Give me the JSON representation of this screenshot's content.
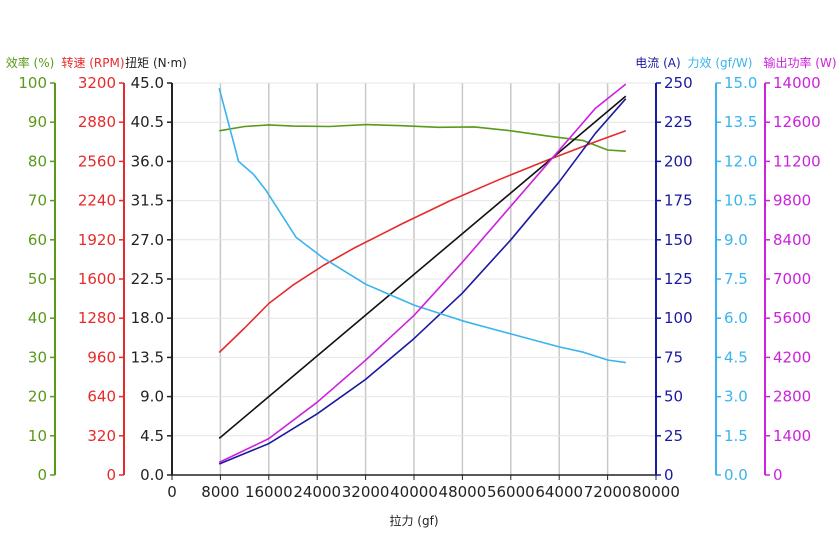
{
  "chart_data": {
    "type": "line",
    "xlabel": "拉力 (gf)",
    "x_axis": {
      "range": [
        0,
        80000
      ],
      "ticks": [
        "0",
        "8000",
        "16000",
        "24000",
        "32000",
        "40000",
        "48000",
        "56000",
        "64000",
        "72000",
        "80000"
      ]
    },
    "grid": true,
    "left_axes": [
      {
        "id": "eff_pct",
        "label": "效率 (%)",
        "color": "#5a9a1a",
        "range": [
          0,
          100
        ],
        "ticks": [
          "0",
          "10",
          "20",
          "30",
          "40",
          "50",
          "60",
          "70",
          "80",
          "90",
          "100"
        ]
      },
      {
        "id": "rpm",
        "label": "转速 (RPM)",
        "color": "#e52b2b",
        "range": [
          0,
          3200
        ],
        "ticks": [
          "0",
          "320",
          "640",
          "960",
          "1280",
          "1600",
          "1920",
          "2240",
          "2560",
          "2880",
          "3200"
        ]
      },
      {
        "id": "torque",
        "label": "扭矩 (N·m)",
        "color": "#222222",
        "range": [
          0,
          45
        ],
        "ticks": [
          "0.0",
          "4.5",
          "9.0",
          "13.5",
          "18.0",
          "22.5",
          "27.0",
          "31.5",
          "36.0",
          "40.5",
          "45.0"
        ]
      }
    ],
    "right_axes": [
      {
        "id": "current",
        "label": "电流 (A)",
        "color": "#1a1aa0",
        "range": [
          0,
          250
        ],
        "ticks": [
          "0",
          "25",
          "50",
          "75",
          "100",
          "125",
          "150",
          "175",
          "200",
          "225",
          "250"
        ]
      },
      {
        "id": "force_eff",
        "label": "力效 (gf/W)",
        "color": "#3ab4ee",
        "range": [
          0,
          15
        ],
        "ticks": [
          "0.0",
          "1.5",
          "3.0",
          "4.5",
          "6.0",
          "7.5",
          "9.0",
          "10.5",
          "12.0",
          "13.5",
          "15.0"
        ]
      },
      {
        "id": "power",
        "label": "输出功率 (W)",
        "color": "#cc22dd",
        "range": [
          0,
          14000
        ],
        "ticks": [
          "0",
          "1400",
          "2800",
          "4200",
          "5600",
          "7000",
          "8400",
          "9800",
          "11200",
          "12600",
          "14000"
        ]
      }
    ],
    "series": [
      {
        "axis": "eff_pct",
        "color": "#5a9a1a",
        "x": [
          7800,
          12000,
          16000,
          20000,
          26000,
          32000,
          38000,
          44000,
          50000,
          56000,
          62000,
          68000,
          72000,
          75000
        ],
        "y": [
          87.8,
          88.9,
          89.3,
          89.0,
          88.9,
          89.4,
          89.1,
          88.7,
          88.8,
          87.8,
          86.5,
          85.3,
          82.9,
          82.6
        ]
      },
      {
        "axis": "rpm",
        "color": "#e52b2b",
        "x": [
          7800,
          12000,
          16000,
          20000,
          25000,
          30000,
          38000,
          46000,
          54000,
          62000,
          70000,
          75000
        ],
        "y": [
          1000,
          1200,
          1400,
          1550,
          1710,
          1850,
          2050,
          2240,
          2410,
          2570,
          2720,
          2810
        ]
      },
      {
        "axis": "torque",
        "color": "#111111",
        "x": [
          7800,
          75000
        ],
        "y": [
          4.2,
          43.5
        ]
      },
      {
        "axis": "current",
        "color": "#1a1aa0",
        "x": [
          7800,
          16000,
          24000,
          32000,
          40000,
          48000,
          56000,
          64000,
          70000,
          75000
        ],
        "y": [
          7,
          20,
          39,
          61,
          87,
          116,
          150,
          187,
          218,
          240
        ]
      },
      {
        "axis": "force_eff",
        "color": "#3ab4ee",
        "x": [
          7800,
          11000,
          13500,
          15500,
          20500,
          25000,
          32000,
          40000,
          48000,
          56000,
          64000,
          68000,
          72000,
          75000
        ],
        "y": [
          14.8,
          12.0,
          11.5,
          10.9,
          9.1,
          8.3,
          7.3,
          6.5,
          5.9,
          5.4,
          4.9,
          4.7,
          4.4,
          4.3
        ]
      },
      {
        "axis": "power",
        "color": "#cc22dd",
        "x": [
          7800,
          16000,
          24000,
          32000,
          40000,
          48000,
          56000,
          64000,
          70000,
          75000
        ],
        "y": [
          450,
          1300,
          2600,
          4100,
          5700,
          7600,
          9600,
          11600,
          13100,
          13960
        ]
      }
    ]
  }
}
